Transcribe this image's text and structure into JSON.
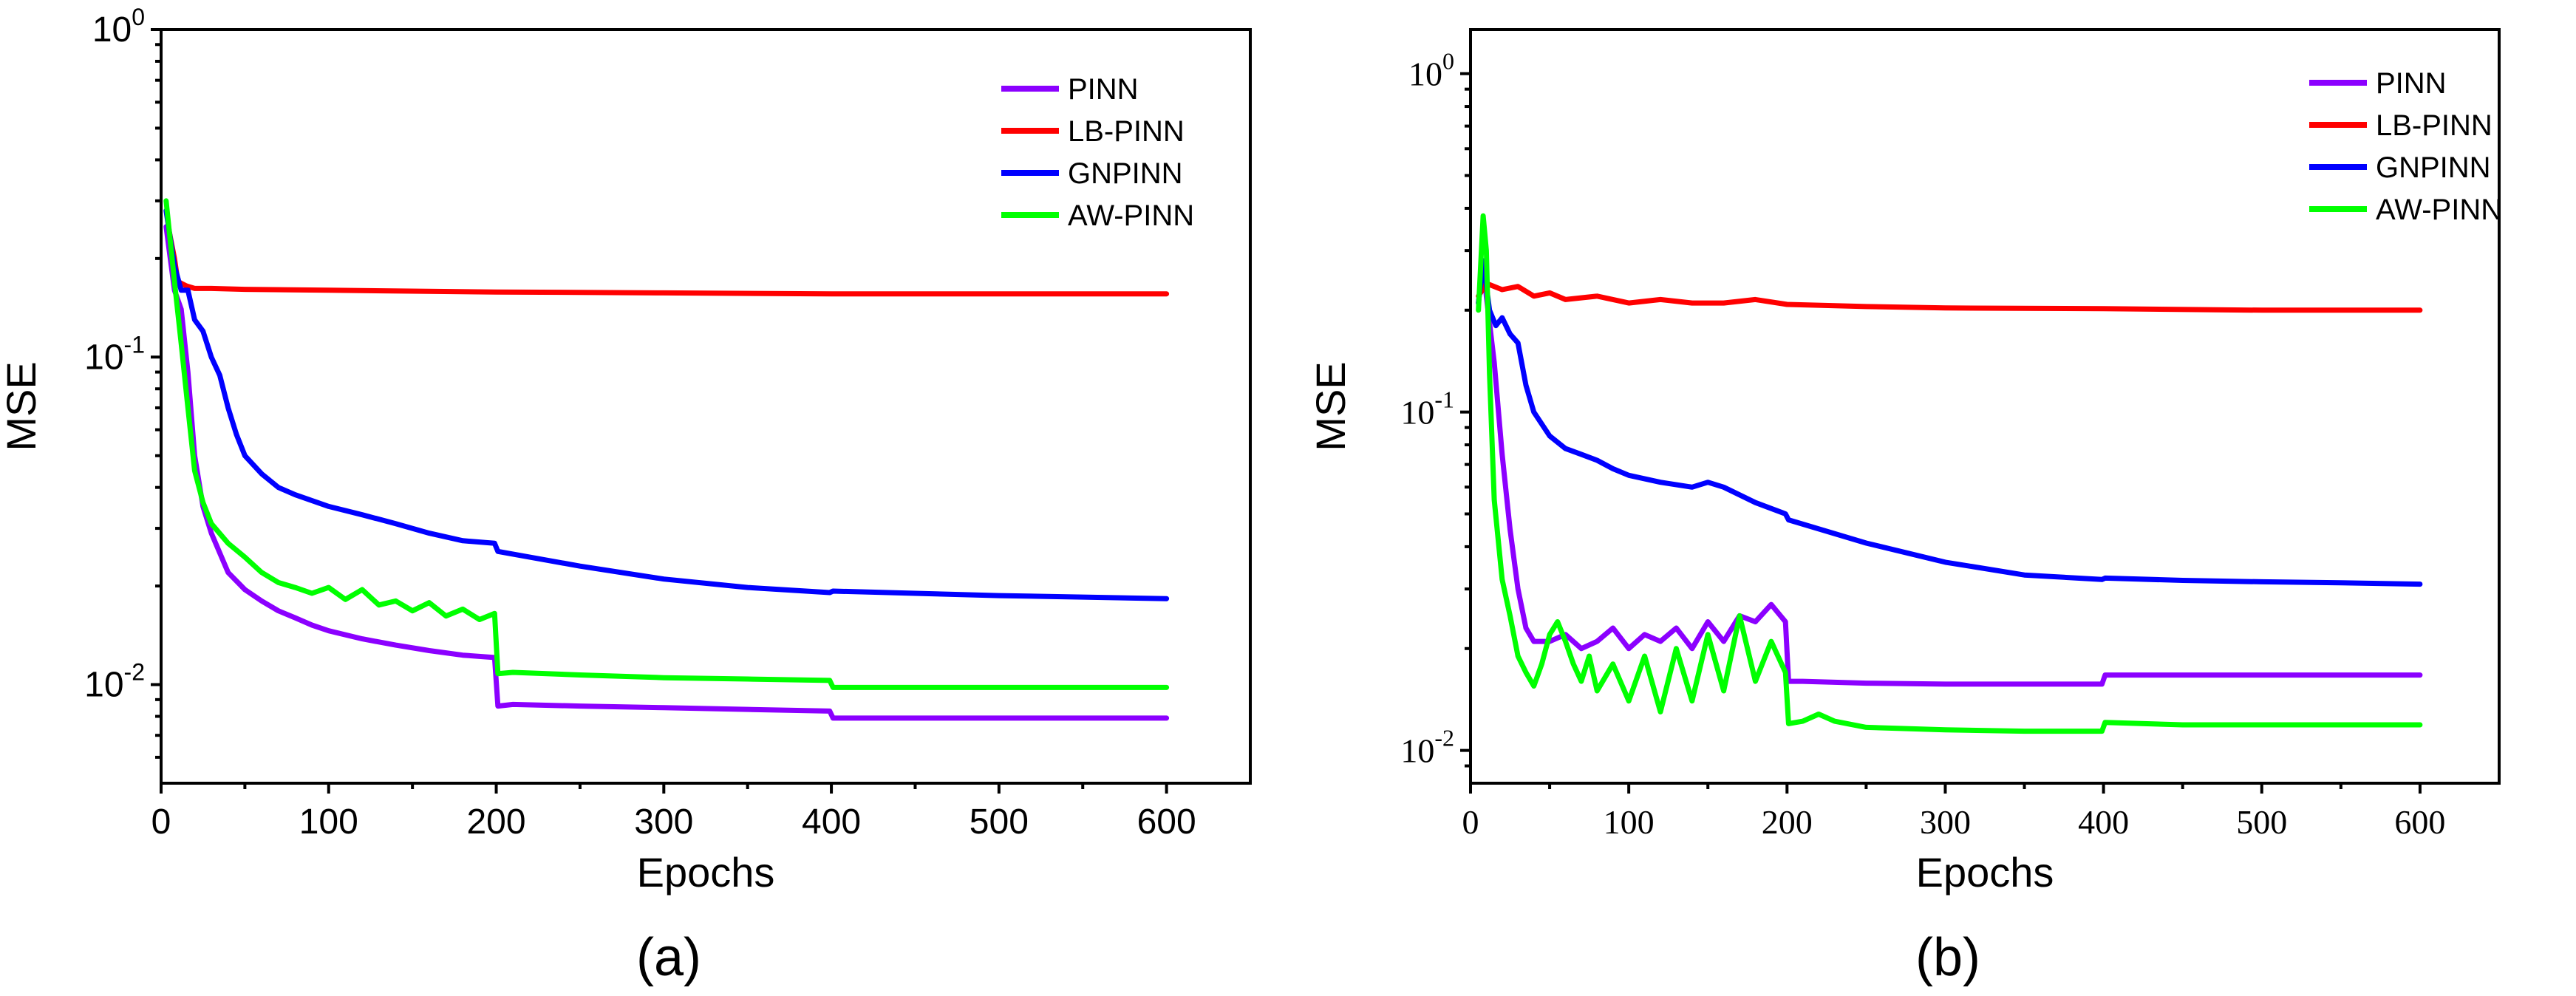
{
  "chart_data": [
    {
      "id": "a",
      "type": "line",
      "caption": "(a)",
      "xlabel": "Epochs",
      "ylabel": "MSE",
      "yscale": "log",
      "xlim": [
        0,
        650
      ],
      "ylim": [
        0.005,
        1
      ],
      "xticks": [
        0,
        100,
        200,
        300,
        400,
        500,
        600
      ],
      "xtick_labels": [
        "0",
        "100",
        "200",
        "300",
        "400",
        "500",
        "600"
      ],
      "yticks": [
        0.01,
        0.1,
        1
      ],
      "ytick_labels": [
        {
          "base": "10",
          "exp": "-2"
        },
        {
          "base": "10",
          "exp": "-1"
        },
        {
          "base": "10",
          "exp": "0"
        }
      ],
      "legend": {
        "placement": "top-right"
      },
      "series": [
        {
          "name": "PINN",
          "color": "#8B00FF",
          "x": [
            3,
            8,
            12,
            16,
            20,
            25,
            30,
            40,
            50,
            60,
            70,
            80,
            90,
            100,
            120,
            140,
            160,
            180,
            199,
            201,
            210,
            250,
            300,
            350,
            399,
            401,
            450,
            500,
            550,
            600
          ],
          "y": [
            0.25,
            0.16,
            0.14,
            0.09,
            0.05,
            0.035,
            0.029,
            0.022,
            0.0195,
            0.018,
            0.0168,
            0.016,
            0.0152,
            0.0146,
            0.0138,
            0.0132,
            0.0127,
            0.0123,
            0.0121,
            0.0086,
            0.0087,
            0.0086,
            0.0085,
            0.0084,
            0.0083,
            0.0079,
            0.0079,
            0.0079,
            0.0079,
            0.0079
          ]
        },
        {
          "name": "LB-PINN",
          "color": "#FF0000",
          "x": [
            5,
            8,
            10,
            15,
            20,
            30,
            50,
            100,
            200,
            300,
            400,
            500,
            600
          ],
          "y": [
            0.24,
            0.2,
            0.17,
            0.165,
            0.162,
            0.162,
            0.161,
            0.16,
            0.158,
            0.157,
            0.156,
            0.156,
            0.156
          ]
        },
        {
          "name": "GNPINN",
          "color": "#0000FF",
          "x": [
            3,
            8,
            12,
            16,
            20,
            25,
            30,
            35,
            40,
            45,
            50,
            60,
            70,
            80,
            100,
            120,
            140,
            160,
            180,
            199,
            201,
            250,
            300,
            350,
            399,
            401,
            450,
            500,
            550,
            600
          ],
          "y": [
            0.28,
            0.19,
            0.16,
            0.16,
            0.13,
            0.12,
            0.1,
            0.088,
            0.07,
            0.058,
            0.05,
            0.044,
            0.04,
            0.038,
            0.035,
            0.033,
            0.031,
            0.029,
            0.0275,
            0.027,
            0.0255,
            0.023,
            0.021,
            0.0198,
            0.0191,
            0.0193,
            0.019,
            0.0187,
            0.0185,
            0.0183
          ]
        },
        {
          "name": "AW-PINN",
          "color": "#00FF00",
          "x": [
            3,
            8,
            12,
            16,
            20,
            25,
            30,
            40,
            50,
            60,
            70,
            80,
            90,
            100,
            110,
            120,
            130,
            140,
            150,
            160,
            170,
            180,
            190,
            199,
            201,
            210,
            250,
            300,
            350,
            399,
            401,
            450,
            500,
            550,
            600
          ],
          "y": [
            0.3,
            0.17,
            0.11,
            0.07,
            0.045,
            0.036,
            0.031,
            0.027,
            0.0245,
            0.022,
            0.0205,
            0.0198,
            0.019,
            0.0198,
            0.0182,
            0.0195,
            0.0175,
            0.018,
            0.0168,
            0.0178,
            0.0162,
            0.017,
            0.0158,
            0.0165,
            0.0108,
            0.0109,
            0.0107,
            0.0105,
            0.0104,
            0.0103,
            0.0098,
            0.0098,
            0.0098,
            0.0098,
            0.0098
          ]
        }
      ]
    },
    {
      "id": "b",
      "type": "line",
      "caption": "(b)",
      "xlabel": "Epochs",
      "ylabel": "MSE",
      "yscale": "log",
      "xlim": [
        0,
        650
      ],
      "ylim": [
        0.008,
        1.35
      ],
      "xticks": [
        0,
        100,
        200,
        300,
        400,
        500,
        600
      ],
      "xtick_labels": [
        "0",
        "100",
        "200",
        "300",
        "400",
        "500",
        "600"
      ],
      "yticks": [
        0.01,
        0.1,
        1
      ],
      "ytick_labels": [
        {
          "base": "10",
          "exp": "-2"
        },
        {
          "base": "10",
          "exp": "-1"
        },
        {
          "base": "10",
          "exp": "0"
        }
      ],
      "legend": {
        "placement": "top-right"
      },
      "series": [
        {
          "name": "PINN",
          "color": "#8B00FF",
          "x": [
            5,
            8,
            10,
            15,
            20,
            25,
            30,
            35,
            40,
            50,
            60,
            70,
            80,
            90,
            100,
            110,
            120,
            130,
            140,
            150,
            160,
            170,
            180,
            190,
            199,
            201,
            210,
            250,
            300,
            350,
            399,
            401,
            450,
            500,
            550,
            600
          ],
          "y": [
            0.21,
            0.28,
            0.22,
            0.14,
            0.075,
            0.045,
            0.03,
            0.023,
            0.021,
            0.021,
            0.022,
            0.02,
            0.021,
            0.023,
            0.02,
            0.022,
            0.021,
            0.023,
            0.02,
            0.024,
            0.021,
            0.025,
            0.024,
            0.027,
            0.024,
            0.016,
            0.016,
            0.0158,
            0.0157,
            0.0157,
            0.0157,
            0.0167,
            0.0167,
            0.0167,
            0.0167,
            0.0167
          ]
        },
        {
          "name": "LB-PINN",
          "color": "#FF0000",
          "x": [
            5,
            10,
            20,
            30,
            40,
            50,
            60,
            80,
            100,
            120,
            140,
            160,
            180,
            200,
            250,
            300,
            400,
            500,
            600
          ],
          "y": [
            0.22,
            0.24,
            0.23,
            0.235,
            0.22,
            0.225,
            0.215,
            0.22,
            0.21,
            0.215,
            0.21,
            0.21,
            0.215,
            0.208,
            0.205,
            0.203,
            0.202,
            0.2,
            0.2
          ]
        },
        {
          "name": "GNPINN",
          "color": "#0000FF",
          "x": [
            5,
            8,
            12,
            16,
            20,
            25,
            30,
            35,
            40,
            50,
            60,
            70,
            80,
            90,
            100,
            120,
            140,
            150,
            160,
            180,
            199,
            201,
            250,
            300,
            350,
            399,
            401,
            450,
            500,
            550,
            600
          ],
          "y": [
            0.21,
            0.28,
            0.2,
            0.18,
            0.19,
            0.17,
            0.16,
            0.12,
            0.1,
            0.085,
            0.078,
            0.075,
            0.072,
            0.068,
            0.065,
            0.062,
            0.06,
            0.062,
            0.06,
            0.054,
            0.05,
            0.048,
            0.041,
            0.036,
            0.033,
            0.032,
            0.0323,
            0.0318,
            0.0315,
            0.0313,
            0.031
          ]
        },
        {
          "name": "AW-PINN",
          "color": "#00FF00",
          "x": [
            5,
            8,
            10,
            12,
            15,
            20,
            25,
            30,
            35,
            40,
            45,
            50,
            55,
            60,
            65,
            70,
            75,
            80,
            90,
            100,
            110,
            120,
            130,
            140,
            150,
            160,
            170,
            180,
            190,
            199,
            201,
            210,
            220,
            230,
            250,
            300,
            350,
            399,
            401,
            450,
            500,
            550,
            600
          ],
          "y": [
            0.2,
            0.38,
            0.3,
            0.13,
            0.055,
            0.032,
            0.025,
            0.019,
            0.017,
            0.0155,
            0.018,
            0.022,
            0.024,
            0.021,
            0.018,
            0.016,
            0.019,
            0.015,
            0.018,
            0.014,
            0.019,
            0.013,
            0.02,
            0.014,
            0.022,
            0.015,
            0.025,
            0.016,
            0.021,
            0.017,
            0.012,
            0.0122,
            0.0128,
            0.0122,
            0.0117,
            0.0115,
            0.0114,
            0.0114,
            0.0121,
            0.0119,
            0.0119,
            0.0119,
            0.0119
          ]
        }
      ]
    }
  ]
}
